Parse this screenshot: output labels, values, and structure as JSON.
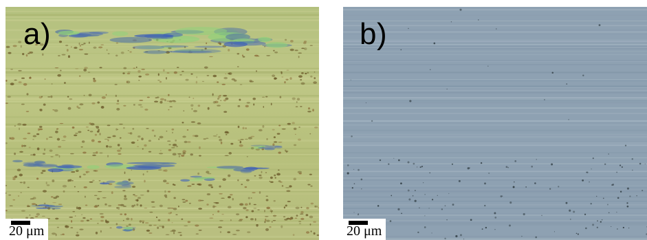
{
  "panels": [
    {
      "label": "a)",
      "scale_bar": "20 μm",
      "colors": {
        "base": "#b9c27c",
        "pits": "#6b5a2a",
        "iridescent": "#3d5fb8",
        "highlight": "#8fd27a"
      }
    },
    {
      "label": "b)",
      "scale_bar": "20 μm",
      "colors": {
        "base": "#8ea2b4",
        "pits": "#2e3a40"
      }
    }
  ]
}
